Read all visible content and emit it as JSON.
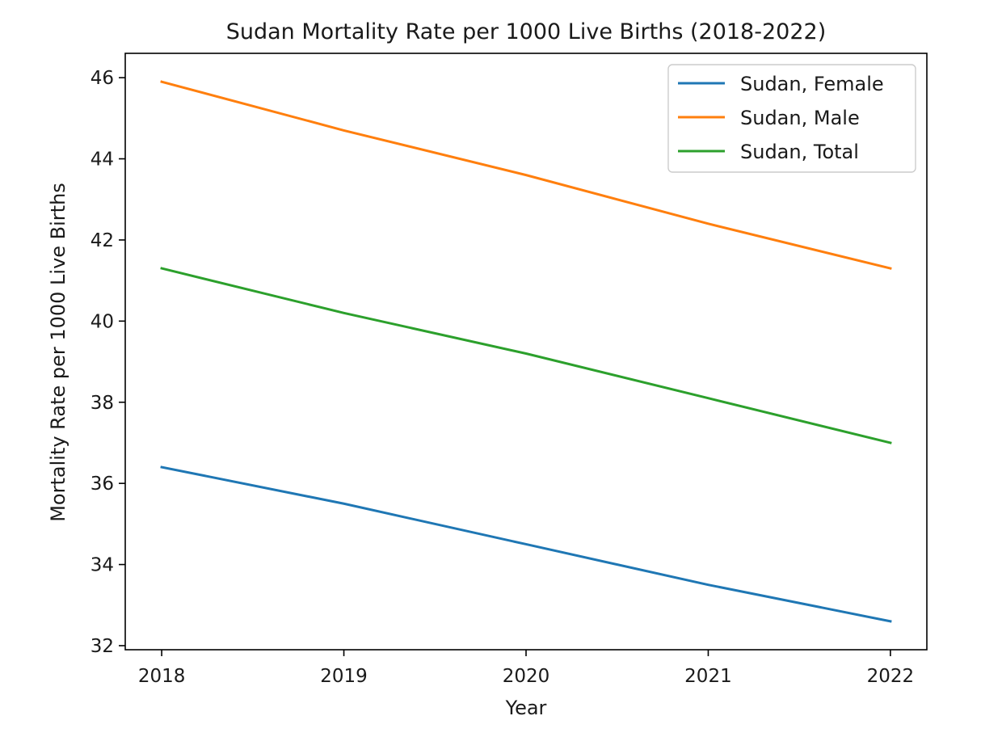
{
  "chart_data": {
    "type": "line",
    "title": "Sudan Mortality Rate per 1000 Live Births (2018-2022)",
    "xlabel": "Year",
    "ylabel": "Mortality Rate per 1000 Live Births",
    "x": [
      2018,
      2019,
      2020,
      2021,
      2022
    ],
    "x_tick_labels": [
      "2018",
      "2019",
      "2020",
      "2021",
      "2022"
    ],
    "y_ticks": [
      32,
      34,
      36,
      38,
      40,
      42,
      44,
      46
    ],
    "y_tick_labels": [
      "32",
      "34",
      "36",
      "38",
      "40",
      "42",
      "44",
      "46"
    ],
    "xlim": [
      2017.8,
      2022.2
    ],
    "ylim": [
      31.9,
      46.6
    ],
    "grid": false,
    "legend_position": "top-right",
    "series": [
      {
        "name": "Sudan, Female",
        "color": "#1f77b4",
        "values": [
          36.4,
          35.5,
          34.5,
          33.5,
          32.6
        ]
      },
      {
        "name": "Sudan, Male",
        "color": "#ff7f0e",
        "values": [
          45.9,
          44.7,
          43.6,
          42.4,
          41.3
        ]
      },
      {
        "name": "Sudan, Total",
        "color": "#2ca02c",
        "values": [
          41.3,
          40.2,
          39.2,
          38.1,
          37.0
        ]
      }
    ]
  }
}
